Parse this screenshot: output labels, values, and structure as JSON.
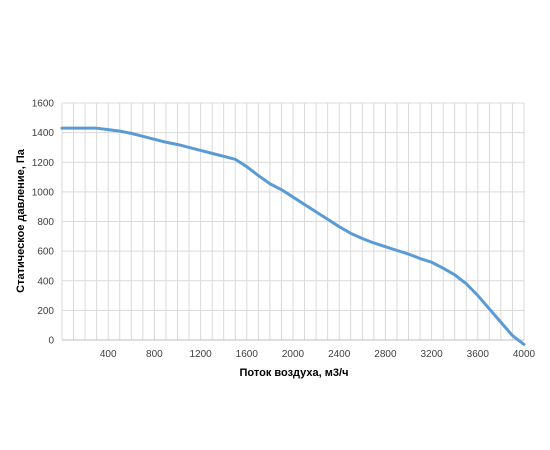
{
  "chart_data": {
    "type": "line",
    "title": "",
    "xlabel": "Поток воздуха, м3/ч",
    "ylabel": "Статическое давление, Па",
    "xlim": [
      0,
      4000
    ],
    "ylim": [
      0,
      1600
    ],
    "x_ticks": [
      400,
      800,
      1200,
      1600,
      2000,
      2400,
      2800,
      3200,
      3600,
      4000
    ],
    "y_ticks": [
      0,
      200,
      400,
      600,
      800,
      1000,
      1200,
      1400,
      1600
    ],
    "grid": true,
    "legend": "none",
    "colors": {
      "line": "#5b9bd5",
      "grid": "#d9d9d9",
      "axis": "#bfbfbf",
      "text": "#404040"
    },
    "series": [
      {
        "x": [
          0,
          100,
          200,
          300,
          400,
          500,
          600,
          700,
          800,
          900,
          1000,
          1100,
          1200,
          1300,
          1400,
          1500,
          1600,
          1700,
          1800,
          1900,
          2000,
          2100,
          2200,
          2300,
          2400,
          2500,
          2600,
          2700,
          2800,
          2900,
          3000,
          3100,
          3200,
          3300,
          3400,
          3450,
          3500,
          3550,
          3600,
          3700,
          3800,
          3900,
          4000
        ],
        "y": [
          1430,
          1430,
          1430,
          1430,
          1420,
          1410,
          1395,
          1375,
          1355,
          1335,
          1320,
          1300,
          1280,
          1260,
          1240,
          1220,
          1170,
          1110,
          1055,
          1015,
          965,
          915,
          865,
          815,
          765,
          720,
          685,
          655,
          630,
          605,
          580,
          550,
          525,
          485,
          440,
          410,
          380,
          340,
          300,
          210,
          120,
          30,
          -30
        ]
      }
    ]
  }
}
